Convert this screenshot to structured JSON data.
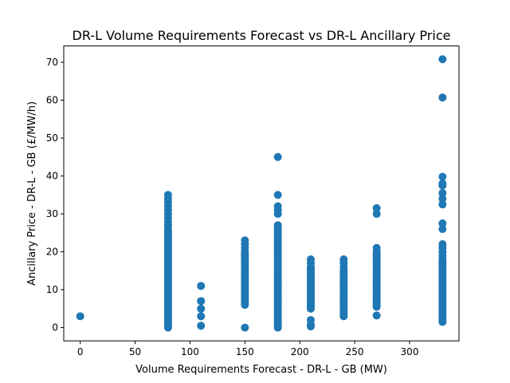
{
  "chart_data": {
    "type": "scatter",
    "title": "DR-L Volume Requirements Forecast vs DR-L Ancillary Price",
    "xlabel": "Volume Requirements Forecast - DR-L - GB (MW)",
    "ylabel": "Ancillary Price - DR-L - GB (£/MW/h)",
    "xlim": [
      -15,
      345
    ],
    "ylim": [
      -3.5,
      74.3
    ],
    "xticks": [
      0,
      50,
      100,
      150,
      200,
      250,
      300
    ],
    "yticks": [
      0,
      10,
      20,
      30,
      40,
      50,
      60,
      70
    ],
    "grid": false,
    "marker_color": "#1f77b4",
    "points": [
      [
        0,
        3.0
      ],
      [
        80,
        0.0
      ],
      [
        80,
        0.3
      ],
      [
        80,
        0.6
      ],
      [
        80,
        1.0
      ],
      [
        80,
        1.5
      ],
      [
        80,
        2.0
      ],
      [
        80,
        2.5
      ],
      [
        80,
        3.0
      ],
      [
        80,
        3.5
      ],
      [
        80,
        4.0
      ],
      [
        80,
        4.5
      ],
      [
        80,
        5.0
      ],
      [
        80,
        5.5
      ],
      [
        80,
        6.0
      ],
      [
        80,
        6.5
      ],
      [
        80,
        7.0
      ],
      [
        80,
        7.5
      ],
      [
        80,
        8.0
      ],
      [
        80,
        8.5
      ],
      [
        80,
        9.0
      ],
      [
        80,
        9.5
      ],
      [
        80,
        10.0
      ],
      [
        80,
        10.5
      ],
      [
        80,
        11.0
      ],
      [
        80,
        11.5
      ],
      [
        80,
        12.0
      ],
      [
        80,
        12.5
      ],
      [
        80,
        13.0
      ],
      [
        80,
        13.5
      ],
      [
        80,
        14.0
      ],
      [
        80,
        14.5
      ],
      [
        80,
        15.0
      ],
      [
        80,
        15.5
      ],
      [
        80,
        16.0
      ],
      [
        80,
        16.5
      ],
      [
        80,
        17.0
      ],
      [
        80,
        17.5
      ],
      [
        80,
        18.0
      ],
      [
        80,
        18.5
      ],
      [
        80,
        19.0
      ],
      [
        80,
        19.5
      ],
      [
        80,
        20.0
      ],
      [
        80,
        20.5
      ],
      [
        80,
        21.0
      ],
      [
        80,
        21.5
      ],
      [
        80,
        22.0
      ],
      [
        80,
        22.5
      ],
      [
        80,
        23.0
      ],
      [
        80,
        23.5
      ],
      [
        80,
        24.0
      ],
      [
        80,
        24.5
      ],
      [
        80,
        25.0
      ],
      [
        80,
        25.5
      ],
      [
        80,
        26.0
      ],
      [
        80,
        27.0
      ],
      [
        80,
        28.0
      ],
      [
        80,
        29.0
      ],
      [
        80,
        30.0
      ],
      [
        80,
        31.0
      ],
      [
        80,
        32.0
      ],
      [
        80,
        33.0
      ],
      [
        80,
        34.0
      ],
      [
        80,
        35.0
      ],
      [
        110,
        0.5
      ],
      [
        110,
        3.0
      ],
      [
        110,
        5.0
      ],
      [
        110,
        7.0
      ],
      [
        110,
        11.0
      ],
      [
        150,
        0.0
      ],
      [
        150,
        6.0
      ],
      [
        150,
        6.5
      ],
      [
        150,
        7.0
      ],
      [
        150,
        7.5
      ],
      [
        150,
        8.0
      ],
      [
        150,
        8.5
      ],
      [
        150,
        9.0
      ],
      [
        150,
        9.5
      ],
      [
        150,
        10.0
      ],
      [
        150,
        10.5
      ],
      [
        150,
        11.0
      ],
      [
        150,
        11.5
      ],
      [
        150,
        12.0
      ],
      [
        150,
        12.5
      ],
      [
        150,
        13.0
      ],
      [
        150,
        13.5
      ],
      [
        150,
        14.0
      ],
      [
        150,
        14.5
      ],
      [
        150,
        15.0
      ],
      [
        150,
        15.5
      ],
      [
        150,
        16.0
      ],
      [
        150,
        16.5
      ],
      [
        150,
        17.0
      ],
      [
        150,
        17.5
      ],
      [
        150,
        18.0
      ],
      [
        150,
        18.5
      ],
      [
        150,
        19.0
      ],
      [
        150,
        19.5
      ],
      [
        150,
        20.0
      ],
      [
        150,
        21.0
      ],
      [
        150,
        22.0
      ],
      [
        150,
        23.0
      ],
      [
        180,
        0.0
      ],
      [
        180,
        0.5
      ],
      [
        180,
        1.0
      ],
      [
        180,
        1.5
      ],
      [
        180,
        2.0
      ],
      [
        180,
        2.5
      ],
      [
        180,
        3.0
      ],
      [
        180,
        3.5
      ],
      [
        180,
        4.0
      ],
      [
        180,
        4.5
      ],
      [
        180,
        5.0
      ],
      [
        180,
        5.5
      ],
      [
        180,
        6.0
      ],
      [
        180,
        6.5
      ],
      [
        180,
        7.0
      ],
      [
        180,
        7.5
      ],
      [
        180,
        8.0
      ],
      [
        180,
        8.5
      ],
      [
        180,
        9.0
      ],
      [
        180,
        9.5
      ],
      [
        180,
        10.0
      ],
      [
        180,
        10.5
      ],
      [
        180,
        11.0
      ],
      [
        180,
        11.5
      ],
      [
        180,
        12.0
      ],
      [
        180,
        12.5
      ],
      [
        180,
        13.0
      ],
      [
        180,
        13.5
      ],
      [
        180,
        14.0
      ],
      [
        180,
        14.5
      ],
      [
        180,
        15.0
      ],
      [
        180,
        15.5
      ],
      [
        180,
        16.0
      ],
      [
        180,
        16.5
      ],
      [
        180,
        17.0
      ],
      [
        180,
        17.5
      ],
      [
        180,
        18.0
      ],
      [
        180,
        18.5
      ],
      [
        180,
        19.0
      ],
      [
        180,
        19.5
      ],
      [
        180,
        20.0
      ],
      [
        180,
        20.5
      ],
      [
        180,
        21.0
      ],
      [
        180,
        21.5
      ],
      [
        180,
        22.0
      ],
      [
        180,
        22.5
      ],
      [
        180,
        23.0
      ],
      [
        180,
        23.5
      ],
      [
        180,
        24.0
      ],
      [
        180,
        24.5
      ],
      [
        180,
        25.0
      ],
      [
        180,
        25.5
      ],
      [
        180,
        26.0
      ],
      [
        180,
        26.5
      ],
      [
        180,
        27.0
      ],
      [
        180,
        30.0
      ],
      [
        180,
        31.0
      ],
      [
        180,
        32.0
      ],
      [
        180,
        35.0
      ],
      [
        180,
        45.0
      ],
      [
        210,
        0.3
      ],
      [
        210,
        0.8
      ],
      [
        210,
        2.0
      ],
      [
        210,
        5.0
      ],
      [
        210,
        5.5
      ],
      [
        210,
        6.0
      ],
      [
        210,
        6.5
      ],
      [
        210,
        7.0
      ],
      [
        210,
        7.5
      ],
      [
        210,
        8.0
      ],
      [
        210,
        8.5
      ],
      [
        210,
        9.0
      ],
      [
        210,
        9.5
      ],
      [
        210,
        10.0
      ],
      [
        210,
        10.5
      ],
      [
        210,
        11.0
      ],
      [
        210,
        11.5
      ],
      [
        210,
        12.0
      ],
      [
        210,
        12.5
      ],
      [
        210,
        13.0
      ],
      [
        210,
        13.5
      ],
      [
        210,
        14.0
      ],
      [
        210,
        14.5
      ],
      [
        210,
        15.0
      ],
      [
        210,
        15.5
      ],
      [
        210,
        16.0
      ],
      [
        210,
        17.0
      ],
      [
        210,
        18.0
      ],
      [
        240,
        3.0
      ],
      [
        240,
        3.5
      ],
      [
        240,
        4.0
      ],
      [
        240,
        4.5
      ],
      [
        240,
        5.0
      ],
      [
        240,
        5.5
      ],
      [
        240,
        6.0
      ],
      [
        240,
        6.5
      ],
      [
        240,
        7.0
      ],
      [
        240,
        7.5
      ],
      [
        240,
        8.0
      ],
      [
        240,
        8.5
      ],
      [
        240,
        9.0
      ],
      [
        240,
        9.5
      ],
      [
        240,
        10.0
      ],
      [
        240,
        10.5
      ],
      [
        240,
        11.0
      ],
      [
        240,
        11.5
      ],
      [
        240,
        12.0
      ],
      [
        240,
        12.5
      ],
      [
        240,
        13.0
      ],
      [
        240,
        13.5
      ],
      [
        240,
        14.0
      ],
      [
        240,
        14.5
      ],
      [
        240,
        15.0
      ],
      [
        240,
        16.0
      ],
      [
        240,
        17.0
      ],
      [
        240,
        18.0
      ],
      [
        270,
        3.2
      ],
      [
        270,
        5.5
      ],
      [
        270,
        6.0
      ],
      [
        270,
        6.5
      ],
      [
        270,
        7.0
      ],
      [
        270,
        7.5
      ],
      [
        270,
        8.0
      ],
      [
        270,
        8.5
      ],
      [
        270,
        9.0
      ],
      [
        270,
        9.5
      ],
      [
        270,
        10.0
      ],
      [
        270,
        10.5
      ],
      [
        270,
        11.0
      ],
      [
        270,
        11.5
      ],
      [
        270,
        12.0
      ],
      [
        270,
        12.5
      ],
      [
        270,
        13.0
      ],
      [
        270,
        13.5
      ],
      [
        270,
        14.0
      ],
      [
        270,
        14.5
      ],
      [
        270,
        15.0
      ],
      [
        270,
        15.5
      ],
      [
        270,
        16.0
      ],
      [
        270,
        16.5
      ],
      [
        270,
        17.0
      ],
      [
        270,
        17.5
      ],
      [
        270,
        18.0
      ],
      [
        270,
        18.5
      ],
      [
        270,
        19.0
      ],
      [
        270,
        19.5
      ],
      [
        270,
        20.0
      ],
      [
        270,
        21.0
      ],
      [
        270,
        30.0
      ],
      [
        270,
        31.5
      ],
      [
        330,
        1.5
      ],
      [
        330,
        2.0
      ],
      [
        330,
        2.5
      ],
      [
        330,
        3.0
      ],
      [
        330,
        3.5
      ],
      [
        330,
        4.0
      ],
      [
        330,
        4.5
      ],
      [
        330,
        5.0
      ],
      [
        330,
        5.5
      ],
      [
        330,
        6.0
      ],
      [
        330,
        6.5
      ],
      [
        330,
        7.0
      ],
      [
        330,
        7.5
      ],
      [
        330,
        8.0
      ],
      [
        330,
        8.5
      ],
      [
        330,
        9.0
      ],
      [
        330,
        9.5
      ],
      [
        330,
        10.0
      ],
      [
        330,
        10.5
      ],
      [
        330,
        11.0
      ],
      [
        330,
        11.5
      ],
      [
        330,
        12.0
      ],
      [
        330,
        12.5
      ],
      [
        330,
        13.0
      ],
      [
        330,
        13.5
      ],
      [
        330,
        14.0
      ],
      [
        330,
        14.5
      ],
      [
        330,
        15.0
      ],
      [
        330,
        15.5
      ],
      [
        330,
        16.0
      ],
      [
        330,
        16.5
      ],
      [
        330,
        17.0
      ],
      [
        330,
        17.5
      ],
      [
        330,
        18.0
      ],
      [
        330,
        19.0
      ],
      [
        330,
        20.0
      ],
      [
        330,
        21.0
      ],
      [
        330,
        22.0
      ],
      [
        330,
        26.0
      ],
      [
        330,
        27.5
      ],
      [
        330,
        32.5
      ],
      [
        330,
        34.0
      ],
      [
        330,
        35.5
      ],
      [
        330,
        37.5
      ],
      [
        330,
        38.0
      ],
      [
        330,
        39.8
      ],
      [
        330,
        60.7
      ],
      [
        330,
        70.8
      ]
    ]
  }
}
